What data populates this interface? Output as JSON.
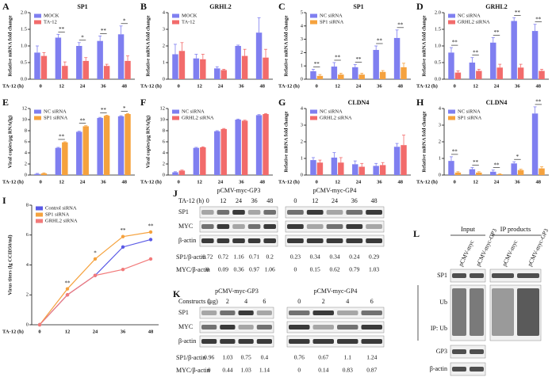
{
  "chart_data": [
    {
      "type": "bar",
      "panel": "A",
      "title": "SP1",
      "ylabel": "Relative mRNA fold change",
      "xlabel": "TA-12 (h)",
      "categories": [
        "0",
        "12",
        "24",
        "36",
        "48"
      ],
      "ylim": [
        0,
        2
      ],
      "yticks": [
        {
          "value": 0,
          "label": "0.0"
        },
        {
          "value": 0.5,
          "label": "0.5"
        },
        {
          "value": 1,
          "label": "1.0"
        },
        {
          "value": 1.5,
          "label": "1.5"
        },
        {
          "value": 2,
          "label": "2.0"
        }
      ],
      "series": [
        {
          "name": "MOCK",
          "color": "#7f7ff0",
          "values": [
            0.8,
            1.25,
            1.0,
            1.15,
            1.35
          ],
          "errors": [
            0.2,
            0.1,
            0.1,
            0.15,
            0.25
          ]
        },
        {
          "name": "TA-12",
          "color": "#f26b6b",
          "values": [
            0.7,
            0.4,
            0.55,
            0.4,
            0.55
          ],
          "errors": [
            0.1,
            0.12,
            0.1,
            0.05,
            0.15
          ]
        }
      ],
      "significance": [
        null,
        "**",
        "*",
        "**",
        "*"
      ]
    },
    {
      "type": "bar",
      "panel": "B",
      "title": "GRHL2",
      "ylabel": "Relative mRNA fold change",
      "xlabel": "TA-12 (h)",
      "categories": [
        "0",
        "12",
        "24",
        "36",
        "48"
      ],
      "ylim": [
        0,
        4
      ],
      "yticks": [
        0,
        1,
        2,
        3,
        4
      ],
      "series": [
        {
          "name": "MOCK",
          "color": "#7f7ff0",
          "values": [
            1.5,
            1.25,
            0.65,
            2.0,
            2.8
          ],
          "errors": [
            0.6,
            0.25,
            0.1,
            0.05,
            0.9
          ]
        },
        {
          "name": "TA-12",
          "color": "#f26b6b",
          "values": [
            1.7,
            1.2,
            0.55,
            1.4,
            1.3
          ],
          "errors": [
            0.5,
            0.3,
            0.05,
            0.4,
            0.5
          ]
        }
      ]
    },
    {
      "type": "bar",
      "panel": "C",
      "title": "SP1",
      "ylabel": "Relative mRNA fold change",
      "xlabel": "TA-12 (h)",
      "categories": [
        "0",
        "12",
        "24",
        "36",
        "48"
      ],
      "ylim": [
        0,
        5
      ],
      "yticks": [
        0,
        1,
        2,
        3,
        4,
        5
      ],
      "series": [
        {
          "name": "NC siRNA",
          "color": "#7f7ff0",
          "values": [
            0.6,
            0.95,
            0.9,
            2.2,
            3.1
          ],
          "errors": [
            0.15,
            0.3,
            0.2,
            0.3,
            0.6
          ]
        },
        {
          "name": "SP1 siRNA",
          "color": "#f5a23e",
          "values": [
            0.25,
            0.35,
            0.35,
            0.55,
            0.9
          ],
          "errors": [
            0.1,
            0.1,
            0.1,
            0.1,
            0.3
          ]
        }
      ],
      "significance": [
        "**",
        "**",
        "**",
        "**",
        "**"
      ]
    },
    {
      "type": "bar",
      "panel": "D",
      "title": "GRHL2",
      "ylabel": "Relative mRNA fold change",
      "xlabel": "TA-12 (h)",
      "categories": [
        "0",
        "12",
        "24",
        "36",
        "48"
      ],
      "ylim": [
        0,
        2
      ],
      "yticks": [
        {
          "value": 0,
          "label": "0.0"
        },
        {
          "value": 0.5,
          "label": "0.5"
        },
        {
          "value": 1,
          "label": "1.0"
        },
        {
          "value": 1.5,
          "label": "1.5"
        },
        {
          "value": 2,
          "label": "2.0"
        }
      ],
      "series": [
        {
          "name": "NC siRNA",
          "color": "#7f7ff0",
          "values": [
            0.8,
            0.5,
            1.1,
            1.75,
            1.45
          ],
          "errors": [
            0.15,
            0.15,
            0.15,
            0.1,
            0.2
          ]
        },
        {
          "name": "GRHL2 siRNA",
          "color": "#f26b6b",
          "values": [
            0.2,
            0.25,
            0.35,
            0.35,
            0.25
          ],
          "errors": [
            0.05,
            0.05,
            0.1,
            0.1,
            0.05
          ]
        }
      ],
      "significance": [
        "**",
        "**",
        "**",
        "**",
        "**"
      ]
    },
    {
      "type": "bar",
      "panel": "E",
      "ylabel": "Viral copies/μg RNA(lg)",
      "xlabel": "TA-12 (h)",
      "categories": [
        "0",
        "12",
        "24",
        "36",
        "48"
      ],
      "ylim": [
        0,
        12
      ],
      "yticks": [
        0,
        2,
        4,
        6,
        8,
        10,
        12
      ],
      "series": [
        {
          "name": "NC siRNA",
          "color": "#7f7ff0",
          "values": [
            0.2,
            4.9,
            7.8,
            10.3,
            10.6
          ],
          "errors": [
            0.1,
            0.1,
            0.1,
            0.1,
            0.1
          ]
        },
        {
          "name": "SP1 siRNA",
          "color": "#f5a23e",
          "values": [
            0.3,
            5.9,
            8.8,
            10.7,
            11.0
          ],
          "errors": [
            0.1,
            0.1,
            0.1,
            0.1,
            0.1
          ]
        }
      ],
      "significance": [
        null,
        "**",
        "**",
        "**",
        "*"
      ]
    },
    {
      "type": "bar",
      "panel": "F",
      "ylabel": "Viral copies/μg RNA(lg)",
      "xlabel": "TA-12 (h)",
      "categories": [
        "0",
        "12",
        "24",
        "36",
        "48"
      ],
      "ylim": [
        0,
        12
      ],
      "yticks": [
        0,
        2,
        4,
        6,
        8,
        10,
        12
      ],
      "series": [
        {
          "name": "NC siRNA",
          "color": "#7f7ff0",
          "values": [
            0.5,
            4.9,
            7.9,
            10.0,
            10.8
          ],
          "errors": [
            0.1,
            0.1,
            0.1,
            0.1,
            0.1
          ]
        },
        {
          "name": "GRHL2 siRNA",
          "color": "#f26b6b",
          "values": [
            0.8,
            5.0,
            8.3,
            9.8,
            11.0
          ],
          "errors": [
            0.1,
            0.1,
            0.1,
            0.1,
            0.1
          ]
        }
      ]
    },
    {
      "type": "bar",
      "panel": "G",
      "title": "CLDN4",
      "ylabel": "Relative mRNA fold change",
      "xlabel": "TA-12 (h)",
      "categories": [
        "0",
        "12",
        "24",
        "36",
        "48"
      ],
      "ylim": [
        0,
        4
      ],
      "yticks": [
        0,
        1,
        2,
        3,
        4
      ],
      "series": [
        {
          "name": "NC siRNA",
          "color": "#7f7ff0",
          "values": [
            0.9,
            1.05,
            0.65,
            0.55,
            1.7
          ],
          "errors": [
            0.15,
            0.3,
            0.2,
            0.15,
            0.2
          ]
        },
        {
          "name": "GRHL2 siRNA",
          "color": "#f26b6b",
          "values": [
            0.75,
            0.75,
            0.5,
            0.6,
            1.8
          ],
          "errors": [
            0.15,
            0.3,
            0.2,
            0.15,
            0.6
          ]
        }
      ]
    },
    {
      "type": "bar",
      "panel": "H",
      "title": "CLDN4",
      "ylabel": "Relative mRNA fold change",
      "xlabel": "TA-12 (h)",
      "categories": [
        "0",
        "12",
        "24",
        "36",
        "48"
      ],
      "ylim": [
        0,
        4
      ],
      "yticks": [
        0,
        1,
        2,
        3,
        4
      ],
      "series": [
        {
          "name": "NC siRNA",
          "color": "#7f7ff0",
          "values": [
            0.85,
            0.35,
            0.2,
            0.7,
            3.7
          ],
          "errors": [
            0.25,
            0.1,
            0.1,
            0.1,
            0.4
          ]
        },
        {
          "name": "SP1 siRNA",
          "color": "#f5a23e",
          "values": [
            0.15,
            0.15,
            0.05,
            0.3,
            0.4
          ],
          "errors": [
            0.05,
            0.05,
            0.03,
            0.05,
            0.1
          ]
        }
      ],
      "significance": [
        "**",
        "**",
        "**",
        "*",
        "**"
      ]
    },
    {
      "type": "line",
      "panel": "I",
      "ylabel": "Virus titers (lg CCID50/ml)",
      "xlabel": "TA-12 (h)",
      "categories": [
        "0",
        "12",
        "24",
        "36",
        "48"
      ],
      "ylim": [
        0,
        8
      ],
      "yticks": [
        0,
        2,
        4,
        6,
        8
      ],
      "series": [
        {
          "name": "Control siRNA",
          "color": "#5a5ae6",
          "values": [
            0,
            2.0,
            3.3,
            5.2,
            5.7
          ]
        },
        {
          "name": "SP1 siRNA",
          "color": "#f5a23e",
          "values": [
            0,
            2.4,
            4.4,
            5.9,
            6.2
          ]
        },
        {
          "name": "GRHL2 siRNA",
          "color": "#f27a7a",
          "values": [
            0,
            2.0,
            3.3,
            3.7,
            4.4
          ]
        }
      ],
      "significance": [
        null,
        "**",
        "*",
        "**",
        "**"
      ]
    }
  ],
  "blots": {
    "J": {
      "label": "J",
      "row_header": "TA-12 (h)",
      "groups": [
        {
          "name": "pCMV-myc-GP3",
          "lanes": [
            "0",
            "12",
            "24",
            "36",
            "48"
          ]
        },
        {
          "name": "pCMV-myc-GP4",
          "lanes": [
            "0",
            "12",
            "24",
            "36",
            "48"
          ]
        }
      ],
      "bands": [
        "SP1",
        "MYC",
        "β-actin"
      ],
      "ratios": [
        {
          "name": "SP1/β-actin",
          "values": [
            [
              "0.72",
              "0.72",
              "1.16",
              "0.71",
              "0.2"
            ],
            [
              "0.23",
              "0.34",
              "0.34",
              "0.24",
              "0.29"
            ]
          ]
        },
        {
          "name": "MYC/β-actin",
          "values": [
            [
              "0",
              "0.09",
              "0.36",
              "0.97",
              "1.06"
            ],
            [
              "0",
              "0.15",
              "0.62",
              "0.79",
              "1.03"
            ]
          ]
        }
      ]
    },
    "K": {
      "label": "K",
      "row_header": "Constructs (μg)",
      "groups": [
        {
          "name": "pCMV-myc-GP3",
          "lanes": [
            "0",
            "2",
            "4",
            "6"
          ]
        },
        {
          "name": "pCMV-myc-GP4",
          "lanes": [
            "0",
            "2",
            "4",
            "6"
          ]
        }
      ],
      "bands": [
        "SP1",
        "MYC",
        "β-actin"
      ],
      "ratios": [
        {
          "name": "SP1/β-actin",
          "values": [
            [
              "0.96",
              "1.03",
              "0.75",
              "0.4"
            ],
            [
              "0.76",
              "0.67",
              "1.1",
              "1.24"
            ]
          ]
        },
        {
          "name": "MYC/β-actin",
          "values": [
            [
              "0",
              "0.44",
              "1.03",
              "1.14"
            ],
            [
              "0",
              "0.14",
              "0.83",
              "0.87"
            ]
          ]
        }
      ]
    },
    "L": {
      "label": "L",
      "groups": [
        "Input",
        "IP products"
      ],
      "lanes": [
        "pCMV-myc",
        "pCMV-myc-GP3",
        "pCMV-myc",
        "pCMV-myc-GP3"
      ],
      "bands": [
        "SP1",
        "Ub",
        "GP3",
        "β-actin"
      ],
      "ip_label": "IP: Ub"
    }
  }
}
